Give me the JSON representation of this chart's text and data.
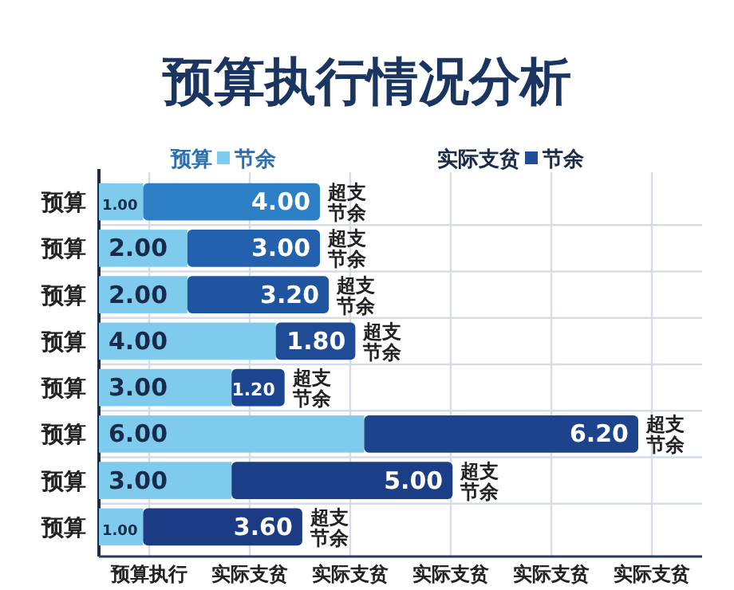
{
  "chart_data": {
    "type": "bar",
    "orientation": "horizontal",
    "stacked": true,
    "title": "预算执行情况分析",
    "categories": [
      "预算",
      "预算",
      "预算",
      "预算",
      "预算",
      "预算",
      "预算",
      "预算"
    ],
    "series": [
      {
        "name": "预算",
        "color": "#7ecbee",
        "values": [
          1.0,
          2.0,
          2.0,
          4.0,
          3.0,
          6.0,
          3.0,
          1.0
        ],
        "value_labels": [
          "1.00",
          "2.00",
          "2.00",
          "4.00",
          "3.00",
          "6.00",
          "3.00",
          "1.00"
        ]
      },
      {
        "name": "实际支贫",
        "color": "#1f4e96",
        "colors": [
          "#2e80c6",
          "#2360ad",
          "#1f55a0",
          "#1e4b94",
          "#1c4790",
          "#1c438b",
          "#1b3f86",
          "#1b3c84"
        ],
        "values": [
          4.0,
          3.0,
          3.2,
          1.8,
          1.2,
          6.2,
          5.0,
          3.6
        ],
        "value_labels": [
          "4.00",
          "3.00",
          "3.20",
          "1.80",
          "1.20",
          "6.20",
          "5.00",
          "3.60"
        ]
      }
    ],
    "grid": true,
    "legend": "top",
    "annotations": [
      "节余",
      "节余",
      "超支节余",
      "超支节余",
      "超支节余",
      "超支节余",
      "超支节余",
      "超支节余",
      "超支节余",
      "超支节余",
      "预算执行",
      "实际支贫",
      "实际支贫",
      "实际支贫",
      "实际支贫",
      "实际支贫"
    ]
  }
}
